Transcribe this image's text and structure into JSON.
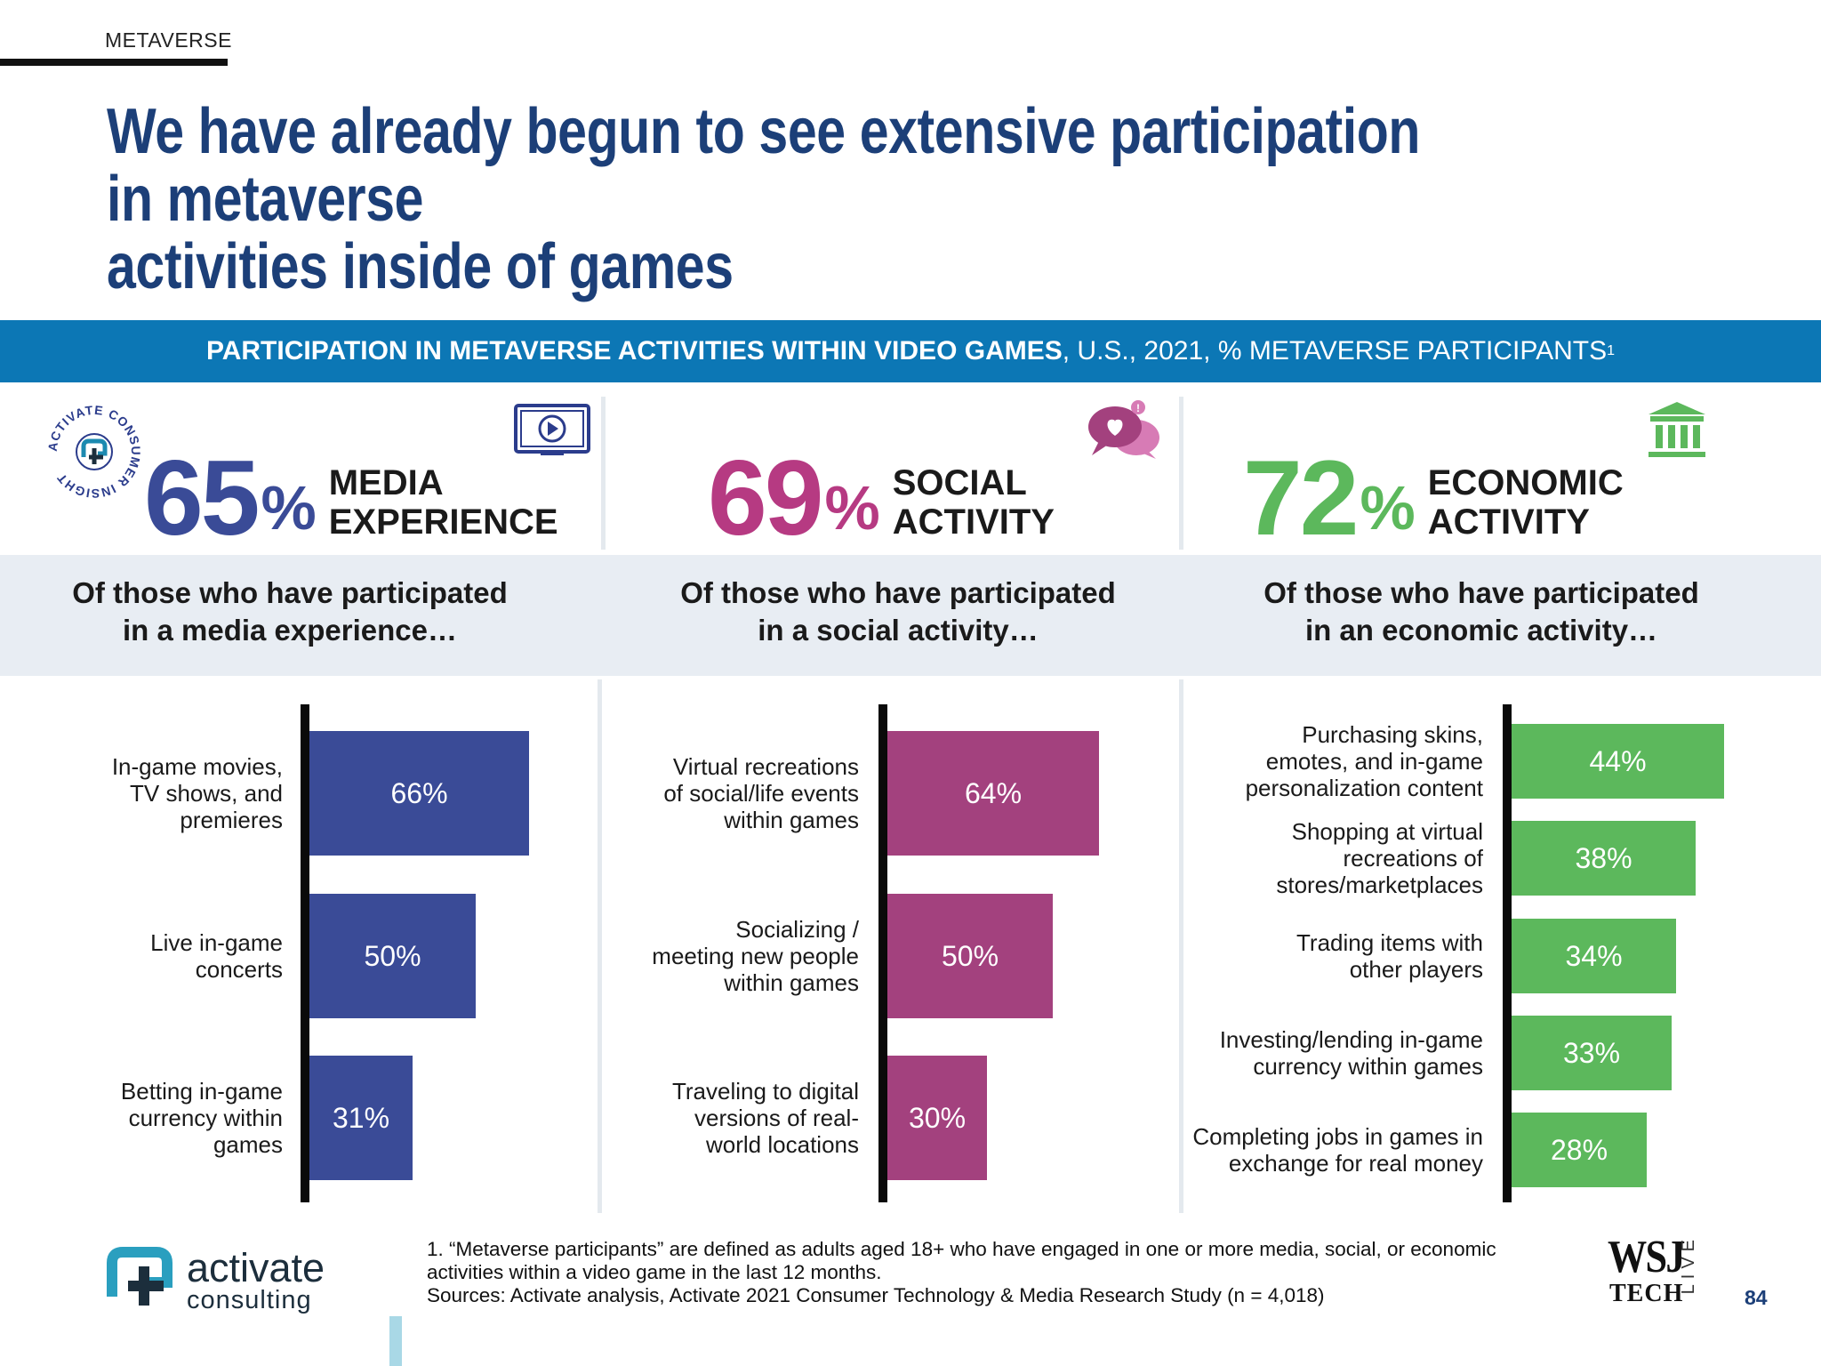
{
  "header": {
    "section": "METAVERSE",
    "title_line1": "We have already begun to see extensive participation in metaverse",
    "title_line2": "activities inside of games"
  },
  "banner": {
    "bold": "PARTICIPATION IN METAVERSE ACTIVITIES WITHIN VIDEO GAMES",
    "rest": ", U.S., 2021, % METAVERSE PARTICIPANTS",
    "sup": "1"
  },
  "badge": {
    "text": "ACTIVATE CONSUMER INSIGHT"
  },
  "panels": [
    {
      "stat_value": "65",
      "stat_unit": "%",
      "label_line1": "MEDIA",
      "label_line2": "EXPERIENCE",
      "subtitle_line1": "Of those who have participated",
      "subtitle_line2": "in a media experience…",
      "color": "#3a4b97",
      "icon": "video-player-icon"
    },
    {
      "stat_value": "69",
      "stat_unit": "%",
      "label_line1": "SOCIAL",
      "label_line2": "ACTIVITY",
      "subtitle_line1": "Of those who have participated",
      "subtitle_line2": "in a social activity…",
      "color": "#a3417e",
      "icon": "chat-heart-icon"
    },
    {
      "stat_value": "72",
      "stat_unit": "%",
      "label_line1": "ECONOMIC",
      "label_line2": "ACTIVITY",
      "subtitle_line1": "Of those who have participated",
      "subtitle_line2": "in an economic activity…",
      "color": "#5cb85c",
      "icon": "bank-building-icon"
    }
  ],
  "chart_data": [
    {
      "type": "bar",
      "orientation": "horizontal",
      "categories": [
        "In-game movies, TV shows, and premieres",
        "Live in-game concerts",
        "Betting in-game currency within games"
      ],
      "category_lines": [
        [
          "In-game movies,",
          "TV shows, and",
          "premieres"
        ],
        [
          "Live in-game",
          "concerts"
        ],
        [
          "Betting in-game",
          "currency within",
          "games"
        ]
      ],
      "values": [
        66,
        50,
        31
      ],
      "value_labels": [
        "66%",
        "50%",
        "31%"
      ],
      "color": "#3a4b97"
    },
    {
      "type": "bar",
      "orientation": "horizontal",
      "categories": [
        "Virtual recreations of social/life events within games",
        "Socializing / meeting new people within games",
        "Traveling to digital versions of real-world locations"
      ],
      "category_lines": [
        [
          "Virtual recreations",
          "of social/life events",
          "within games"
        ],
        [
          "Socializing /",
          "meeting new people",
          "within games"
        ],
        [
          "Traveling to digital",
          "versions of real-",
          "world locations"
        ]
      ],
      "values": [
        64,
        50,
        30
      ],
      "value_labels": [
        "64%",
        "50%",
        "30%"
      ],
      "color": "#a3417e"
    },
    {
      "type": "bar",
      "orientation": "horizontal",
      "categories": [
        "Purchasing skins, emotes, and in-game personalization content",
        "Shopping at virtual recreations of stores/marketplaces",
        "Trading items with other players",
        "Investing/lending in-game currency within games",
        "Completing jobs in games in exchange for real money"
      ],
      "category_lines": [
        [
          "Purchasing skins,",
          "emotes, and in-game",
          "personalization content"
        ],
        [
          "Shopping at virtual",
          "recreations of",
          "stores/marketplaces"
        ],
        [
          "Trading items with",
          "other players"
        ],
        [
          "Investing/lending in-game",
          "currency within games"
        ],
        [
          "Completing jobs in games in",
          "exchange for real money"
        ]
      ],
      "values": [
        44,
        38,
        34,
        33,
        28
      ],
      "value_labels": [
        "44%",
        "38%",
        "34%",
        "33%",
        "28%"
      ],
      "color": "#5cb85c"
    }
  ],
  "footer": {
    "logo_word1": "activate",
    "logo_word2": "consulting",
    "footnote_line1": "1. “Metaverse participants” are defined as adults aged 18+ who have engaged in one or more media, social, or economic",
    "footnote_line2": "activities within a video game in the last 12 months.",
    "footnote_line3": "Sources: Activate analysis, Activate 2021 Consumer Technology & Media Research Study (n = 4,018)",
    "wsj_top": "WSJ",
    "wsj_bottom": "TECH",
    "wsj_side": "LIVE",
    "page_number": "84"
  }
}
